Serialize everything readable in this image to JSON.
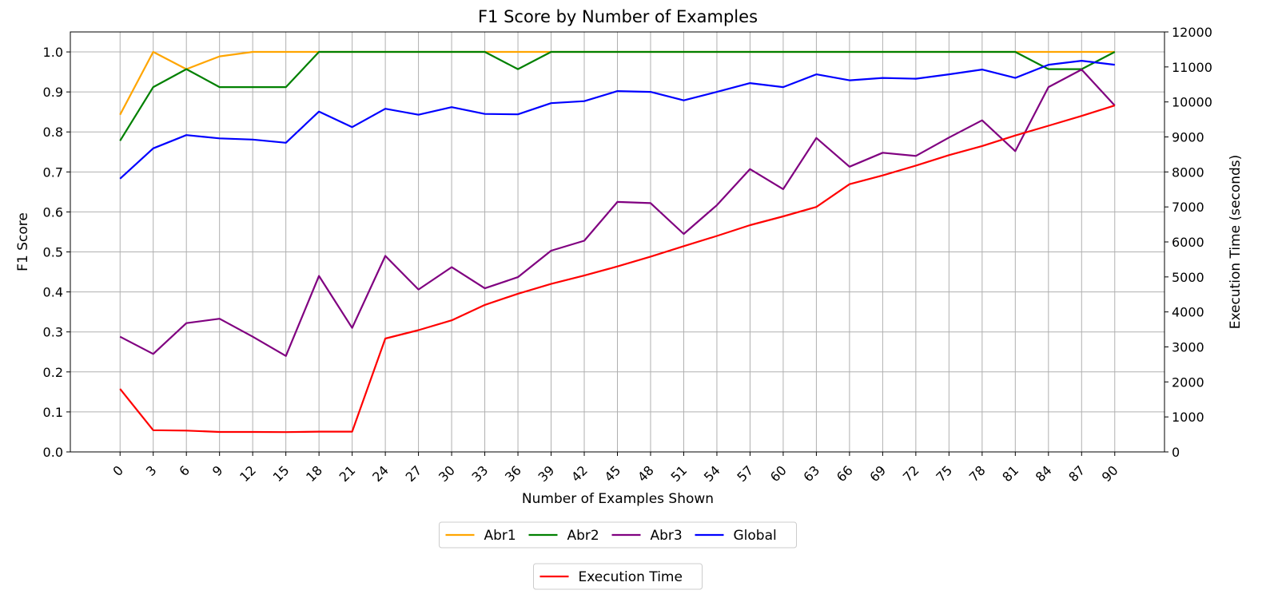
{
  "chart_data": {
    "type": "line",
    "title": "F1 Score by Number of Examples",
    "xlabel": "Number of Examples Shown",
    "ylabel": "F1 Score",
    "y2label": "Execution Time (seconds)",
    "x": [
      0,
      3,
      6,
      9,
      12,
      15,
      18,
      21,
      24,
      27,
      30,
      33,
      36,
      39,
      42,
      45,
      48,
      51,
      54,
      57,
      60,
      63,
      66,
      69,
      72,
      75,
      78,
      81,
      84,
      87,
      90
    ],
    "xticks": [
      "0",
      "3",
      "6",
      "9",
      "12",
      "15",
      "18",
      "21",
      "24",
      "27",
      "30",
      "33",
      "36",
      "39",
      "42",
      "45",
      "48",
      "51",
      "54",
      "57",
      "60",
      "63",
      "66",
      "69",
      "72",
      "75",
      "78",
      "81",
      "84",
      "87",
      "90"
    ],
    "ylim": [
      0,
      1.05
    ],
    "yticks": [
      "0.0",
      "0.1",
      "0.2",
      "0.3",
      "0.4",
      "0.5",
      "0.6",
      "0.7",
      "0.8",
      "0.9",
      "1.0"
    ],
    "y2lim": [
      0,
      12000
    ],
    "y2ticks": [
      "0",
      "1000",
      "2000",
      "3000",
      "4000",
      "5000",
      "6000",
      "7000",
      "8000",
      "9000",
      "10000",
      "11000",
      "12000"
    ],
    "grid": true,
    "series": [
      {
        "name": "Abr1",
        "color": "#ffa500",
        "axis": "left",
        "values": [
          0.843,
          1.0,
          0.957,
          0.989,
          1.0,
          1.0,
          1.0,
          1.0,
          1.0,
          1.0,
          1.0,
          1.0,
          1.0,
          1.0,
          1.0,
          1.0,
          1.0,
          1.0,
          1.0,
          1.0,
          1.0,
          1.0,
          1.0,
          1.0,
          1.0,
          1.0,
          1.0,
          1.0,
          1.0,
          1.0,
          1.0
        ]
      },
      {
        "name": "Abr2",
        "color": "#008000",
        "axis": "left",
        "values": [
          0.778,
          0.912,
          0.957,
          0.912,
          0.912,
          0.912,
          1.0,
          1.0,
          1.0,
          1.0,
          1.0,
          1.0,
          0.957,
          1.0,
          1.0,
          1.0,
          1.0,
          1.0,
          1.0,
          1.0,
          1.0,
          1.0,
          1.0,
          1.0,
          1.0,
          1.0,
          1.0,
          1.0,
          0.957,
          0.957,
          1.0
        ]
      },
      {
        "name": "Abr3",
        "color": "#800080",
        "axis": "left",
        "values": [
          0.288,
          0.245,
          0.322,
          0.333,
          0.288,
          0.24,
          0.44,
          0.31,
          0.49,
          0.406,
          0.462,
          0.409,
          0.437,
          0.503,
          0.528,
          0.625,
          0.622,
          0.545,
          0.617,
          0.707,
          0.657,
          0.785,
          0.713,
          0.748,
          0.74,
          0.786,
          0.829,
          0.752,
          0.912,
          0.956,
          0.866
        ]
      },
      {
        "name": "Global",
        "color": "#0000ff",
        "axis": "left",
        "values": [
          0.683,
          0.759,
          0.792,
          0.784,
          0.781,
          0.773,
          0.851,
          0.812,
          0.858,
          0.843,
          0.862,
          0.845,
          0.844,
          0.872,
          0.877,
          0.902,
          0.9,
          0.879,
          0.9,
          0.922,
          0.912,
          0.944,
          0.929,
          0.935,
          0.933,
          0.944,
          0.956,
          0.935,
          0.968,
          0.978,
          0.968
        ]
      },
      {
        "name": "Execution Time",
        "color": "#ff0000",
        "axis": "right",
        "values": [
          1800,
          620,
          610,
          570,
          570,
          565,
          580,
          580,
          3240,
          3480,
          3760,
          4200,
          4520,
          4800,
          5040,
          5300,
          5580,
          5880,
          6170,
          6480,
          6730,
          7000,
          7650,
          7900,
          8180,
          8480,
          8740,
          9040,
          9320,
          9600,
          9900
        ]
      }
    ],
    "legend": {
      "placement": "bottom-center",
      "group1": [
        "Abr1",
        "Abr2",
        "Abr3",
        "Global"
      ],
      "group2": [
        "Execution Time"
      ]
    }
  }
}
